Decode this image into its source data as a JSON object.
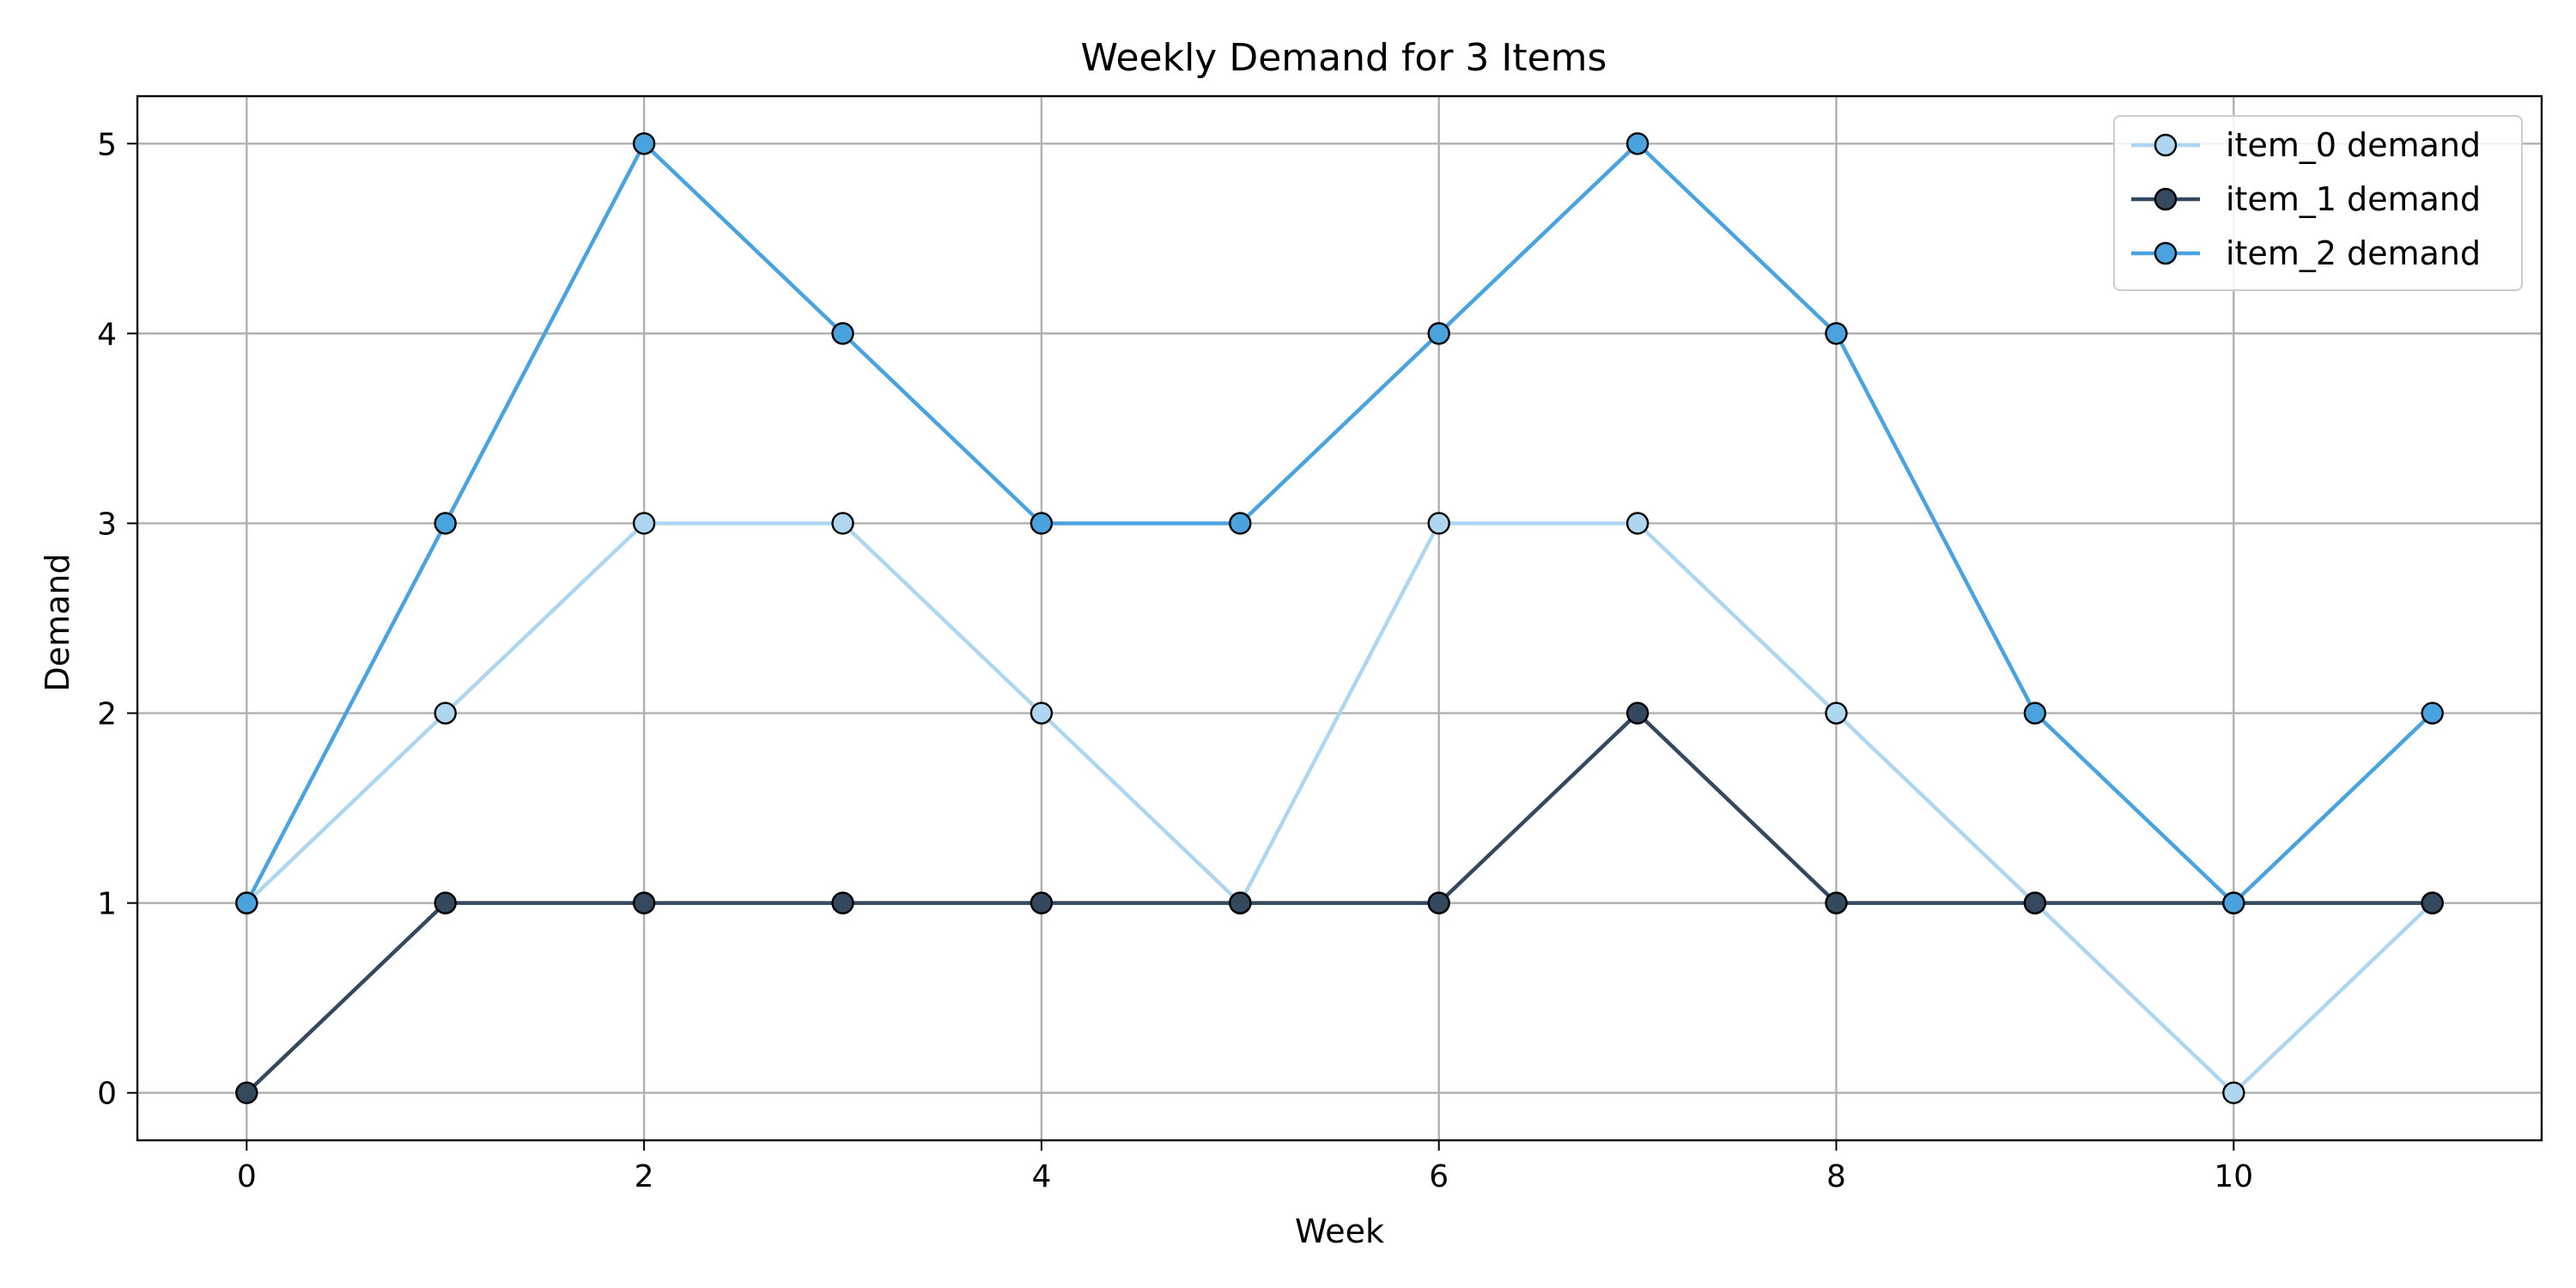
{
  "chart_data": {
    "type": "line",
    "title": "Weekly Demand for 3 Items",
    "xlabel": "Week",
    "ylabel": "Demand",
    "x": [
      0,
      1,
      2,
      3,
      4,
      5,
      6,
      7,
      8,
      9,
      10,
      11
    ],
    "xlim": [
      -0.55,
      11.55
    ],
    "ylim": [
      -0.25,
      5.25
    ],
    "xticks": [
      0,
      2,
      4,
      6,
      8,
      10
    ],
    "yticks": [
      0,
      1,
      2,
      3,
      4,
      5
    ],
    "grid": true,
    "legend_position": "top-right",
    "series": [
      {
        "name": "item_0 demand",
        "color": "#aed6f1",
        "values": [
          1,
          2,
          3,
          3,
          2,
          1,
          3,
          3,
          2,
          1,
          0,
          1
        ]
      },
      {
        "name": "item_1 demand",
        "color": "#34495e",
        "values": [
          0,
          1,
          1,
          1,
          1,
          1,
          1,
          2,
          1,
          1,
          1,
          1
        ]
      },
      {
        "name": "item_2 demand",
        "color": "#4aa3df",
        "values": [
          1,
          3,
          5,
          4,
          3,
          3,
          4,
          5,
          4,
          2,
          1,
          2
        ]
      }
    ]
  }
}
